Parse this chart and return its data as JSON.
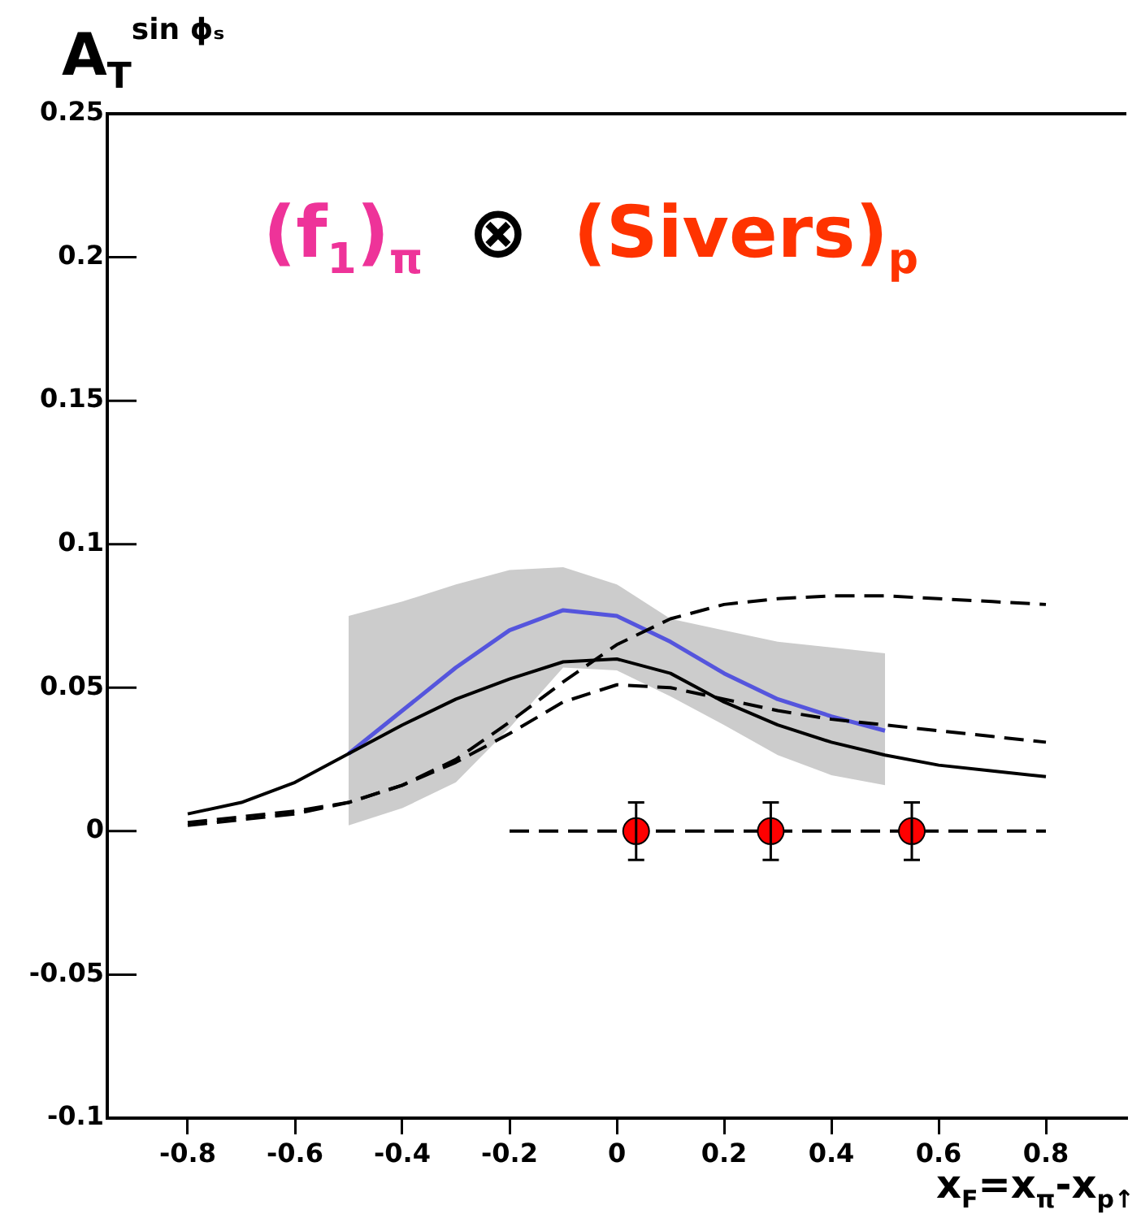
{
  "chart_data": {
    "type": "line",
    "ylabel": "A$_{T}$$^{sin ϕₛ}$",
    "xlabel": "x$_{F}$=x$_{π}$-x$_{p↑}$",
    "annotations": [
      "(f$_{1}$)$_{π}$",
      "⊗",
      "(Sivers)$_{p}$"
    ],
    "xlim": [
      -0.95,
      0.95
    ],
    "xticks": [
      -0.8,
      -0.6,
      -0.4,
      -0.2,
      0,
      0.2,
      0.4,
      0.6,
      0.8
    ],
    "ylim": [
      -0.1,
      0.25
    ],
    "yticks": [
      -0.1,
      -0.05,
      0,
      0.05,
      0.1,
      0.15,
      0.2,
      0.25
    ],
    "grid": false,
    "legend": false,
    "series": [
      {
        "color": "#000000",
        "line_style": "solid",
        "x": [
          -0.8,
          -0.7,
          -0.6,
          -0.5,
          -0.4,
          -0.3,
          -0.2,
          -0.1,
          0,
          0.1,
          0.2,
          0.3,
          0.4,
          0.5,
          0.6,
          0.7,
          0.8
        ],
        "values": [
          0.006,
          0.01,
          0.017,
          0.027,
          0.037,
          0.046,
          0.053,
          0.059,
          0.06,
          0.055,
          0.045,
          0.037,
          0.031,
          0.0265,
          0.023,
          0.021,
          0.019
        ]
      },
      {
        "color": "#000000",
        "line_style": "dashed",
        "x": [
          -0.8,
          -0.6,
          -0.5,
          -0.4,
          -0.3,
          -0.2,
          -0.1,
          0,
          0.1,
          0.2,
          0.3,
          0.4,
          0.5,
          0.6,
          0.7,
          0.8
        ],
        "values": [
          0.002,
          0.006,
          0.01,
          0.016,
          0.024,
          0.034,
          0.045,
          0.051,
          0.05,
          0.046,
          0.042,
          0.039,
          0.037,
          0.035,
          0.033,
          0.031
        ]
      },
      {
        "color": "#000000",
        "line_style": "dashed",
        "x": [
          -0.8,
          -0.6,
          -0.5,
          -0.4,
          -0.3,
          -0.2,
          -0.1,
          0,
          0.1,
          0.2,
          0.3,
          0.4,
          0.5,
          0.6,
          0.7,
          0.8
        ],
        "values": [
          0.003,
          0.007,
          0.01,
          0.016,
          0.025,
          0.038,
          0.052,
          0.065,
          0.074,
          0.079,
          0.081,
          0.082,
          0.082,
          0.081,
          0.08,
          0.079
        ]
      },
      {
        "color": "#5555dd",
        "line_style": "solid",
        "x": [
          -0.5,
          -0.4,
          -0.3,
          -0.2,
          -0.1,
          0,
          0.1,
          0.2,
          0.3,
          0.4,
          0.5
        ],
        "values": [
          0.027,
          0.042,
          0.057,
          0.07,
          0.077,
          0.075,
          0.066,
          0.055,
          0.046,
          0.04,
          0.035
        ],
        "lower": [
          0.002,
          0.008,
          0.017,
          0.036,
          0.057,
          0.056,
          0.047,
          0.037,
          0.0265,
          0.0195,
          0.016
        ],
        "upper": [
          0.075,
          0.08,
          0.086,
          0.091,
          0.092,
          0.086,
          0.074,
          0.07,
          0.066,
          0.064,
          0.062
        ]
      },
      {
        "color": "#000000",
        "line_style": "dashed",
        "x": [
          -0.2,
          0.8
        ],
        "values": [
          0,
          0
        ]
      },
      {
        "type": "scatter",
        "color": "#ff0000",
        "marker": "circle",
        "x": [
          0.036,
          0.287,
          0.55
        ],
        "values": [
          0,
          0,
          0
        ],
        "errors": [
          0.01,
          0.01,
          0.01
        ]
      }
    ]
  }
}
